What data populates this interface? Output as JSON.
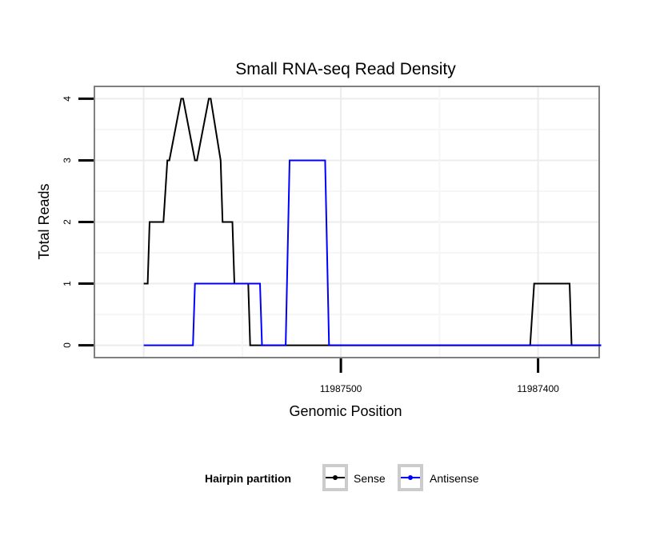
{
  "chart_data": {
    "type": "line",
    "title": "Small RNA-seq Read Density",
    "xlabel": "Genomic Position",
    "ylabel": "Total Reads",
    "xlim": [
      11987625,
      11987369
    ],
    "ylim": [
      -0.2,
      4.2
    ],
    "x_reversed": true,
    "x_ticks": [
      11987500,
      11987400
    ],
    "x_tick_labels": [
      "11987500",
      "11987400"
    ],
    "y_ticks": [
      0,
      1,
      2,
      3,
      4
    ],
    "y_tick_labels": [
      "0",
      "1",
      "2",
      "3",
      "4"
    ],
    "grid": true,
    "legend": {
      "title": "Hairpin partition",
      "placement": "bottom",
      "entries": [
        "Sense",
        "Antisense"
      ]
    },
    "series": [
      {
        "name": "Sense",
        "color": "#000000",
        "x": [
          11987600,
          11987598,
          11987597,
          11987590,
          11987588,
          11987587,
          11987581,
          11987580,
          11987574,
          11987573,
          11987567,
          11987566,
          11987561,
          11987560,
          11987555,
          11987554,
          11987547,
          11987546,
          11987543,
          11987540,
          11987404,
          11987402,
          11987384,
          11987383,
          11987368
        ],
        "y": [
          1,
          1,
          2,
          2,
          3,
          3,
          4,
          4,
          3,
          3,
          4,
          4,
          3,
          2,
          2,
          1,
          1,
          0,
          0,
          0,
          0,
          1,
          1,
          0,
          0
        ]
      },
      {
        "name": "Antisense",
        "color": "#0000ff",
        "x": [
          11987600,
          11987575,
          11987574,
          11987554,
          11987553,
          11987541,
          11987540,
          11987528,
          11987526,
          11987508,
          11987506,
          11987384,
          11987383,
          11987368
        ],
        "y": [
          0,
          0,
          1,
          1,
          1,
          1,
          0,
          0,
          3,
          3,
          0,
          0,
          0,
          0
        ]
      }
    ]
  }
}
